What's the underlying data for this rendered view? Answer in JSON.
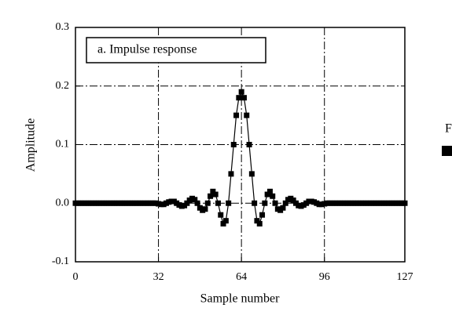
{
  "chart_data": {
    "type": "line",
    "title": "a.  Impulse response",
    "x_label": "Sample number",
    "y_label": "Amplitude",
    "side_label": "F",
    "color": "#000000",
    "marker": "square",
    "grid": true,
    "xlim": [
      0,
      127
    ],
    "ylim": [
      -0.1,
      0.3
    ],
    "xticks": [
      0,
      32,
      64,
      96,
      127
    ],
    "yticks": [
      -0.1,
      {
        "value": 0,
        "label": "0.0"
      },
      0.1,
      0.2,
      0.3
    ],
    "values": [
      0,
      0,
      0,
      0,
      0,
      0,
      0,
      0,
      0,
      0,
      0,
      0,
      0,
      0,
      0,
      0,
      0,
      0,
      0,
      0,
      0,
      0,
      0,
      0,
      0,
      0,
      0,
      0,
      0,
      0,
      0,
      0,
      -0.001,
      -0.002,
      -0.002,
      0,
      0.002,
      0.003,
      0.003,
      0,
      -0.003,
      -0.005,
      -0.004,
      0,
      0.005,
      0.008,
      0.006,
      0,
      -0.008,
      -0.012,
      -0.01,
      0,
      0.012,
      0.02,
      0.015,
      0,
      -0.02,
      -0.035,
      -0.03,
      0,
      0.05,
      0.1,
      0.15,
      0.18,
      0.19,
      0.18,
      0.15,
      0.1,
      0.05,
      0,
      -0.03,
      -0.035,
      -0.02,
      0,
      0.015,
      0.02,
      0.012,
      0,
      -0.01,
      -0.012,
      -0.008,
      0,
      0.006,
      0.008,
      0.005,
      0,
      -0.004,
      -0.005,
      -0.003,
      0,
      0.003,
      0.003,
      0.002,
      0,
      -0.002,
      -0.002,
      -0.001,
      0,
      0,
      0,
      0,
      0,
      0,
      0,
      0,
      0,
      0,
      0,
      0,
      0,
      0,
      0,
      0,
      0,
      0,
      0,
      0,
      0,
      0,
      0,
      0,
      0,
      0,
      0,
      0,
      0,
      0,
      0
    ]
  }
}
